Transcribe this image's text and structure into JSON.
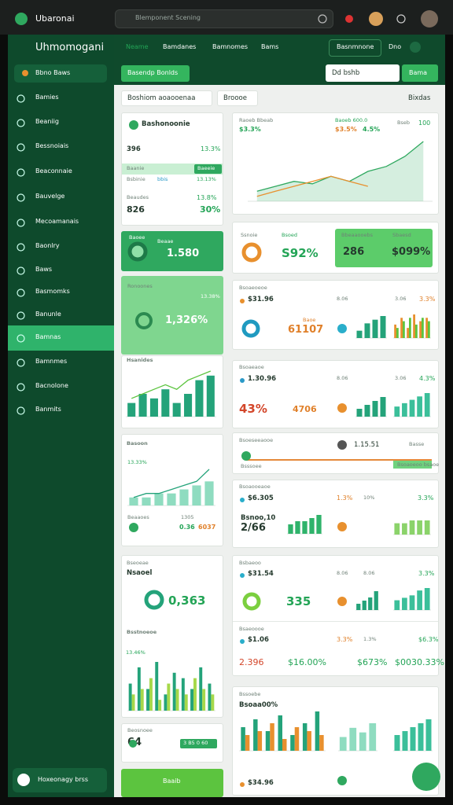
{
  "topbar": {
    "title": "Ubaronai",
    "search": "Blemponent Scening"
  },
  "sidebar": {
    "title": "Uhmomogani",
    "button": "Bbno Baws",
    "items": [
      "Bamies",
      "Beaniig",
      "Bessnoiais",
      "Beaconnaie",
      "Bauvelge",
      "Mecoamanais",
      "Baonlry",
      "Baws",
      "Basmomks",
      "Banunle",
      "Bamnas",
      "Bamnmes",
      "Bacnolone",
      "Banmits"
    ],
    "user": "Hoxeonagy brss"
  },
  "header": {
    "tabs": [
      "Neame",
      "Bamdanes",
      "Bamnomes",
      "Bams"
    ],
    "select": "Basnmnone",
    "user": "Dno",
    "primary": "Basendp Bonlds",
    "input": "Dd bshb",
    "action": "Bama"
  },
  "filters": {
    "select": "Boshiom aoaooenaa",
    "chip": "Broooe",
    "sort": "Bixdas"
  },
  "cards": {
    "l0": [
      "Bashonoonie",
      "396",
      "13.3%",
      "Baanie",
      "Baeeie",
      "Bsbinie",
      "bbis",
      "13.13%",
      "Beaudes",
      "13.8%",
      "826",
      "30%"
    ],
    "l1": [
      "Baoee",
      "Beaae",
      "1.580"
    ],
    "l2": [
      "Ronoones",
      "13.38%",
      "1,326%"
    ],
    "l3": [
      "Hsanides"
    ],
    "l4": [
      "Basoon",
      "13.33%",
      "Beaaoes",
      "1305",
      "0.36",
      "6037"
    ],
    "l5": [
      "Bseoeae",
      "Nsaoel",
      "0,363",
      "Bsstnoeoe",
      "13.46%"
    ],
    "l6": [
      "Beosnoee",
      "64",
      "3 B5 0 60"
    ],
    "l7": [
      "Baaib"
    ],
    "r0": [
      "Raoeb Bbeab",
      "$3.3%",
      "Baoeb 600.0",
      "$3.5%",
      "4.5%",
      "Bseb",
      "100"
    ],
    "r1": [
      "Ssnoie",
      "Bsoed",
      "S92%",
      "Bbeaaooebs",
      "Sbaesd",
      "286",
      "$099%"
    ],
    "r2": [
      "Bsoaeoeoe",
      "$31.96",
      "8.06",
      "3.06",
      "3.3%",
      "61107",
      "Baoe"
    ],
    "r3": [
      "Bsoaeaoe",
      "1.30.96",
      "8.06",
      "3.06",
      "4.3%",
      "43%",
      "4706"
    ],
    "r4": [
      "Bsoeseeaooe",
      "1.15.51",
      "Basse",
      "Bsssoee",
      "Bsoaoeoo bsaoe"
    ],
    "r5": [
      "Bsoaooeaoe",
      "$6.305",
      "1.3%",
      "10%",
      "3.3%",
      "Bsnoo,10",
      "2/66"
    ],
    "r6": [
      "Bsbaeoo",
      "$31.54",
      "8.06",
      "8.06",
      "3.3%",
      "335",
      "Bsaeoooe",
      "$1.06",
      "3.3%",
      "1.3%",
      "$6.3%",
      "2.396",
      "$16.00%",
      "$673%",
      "$0030.33%"
    ],
    "r7": [
      "Bssoebe",
      "Bsoaa00%",
      "$34.96"
    ]
  },
  "charts": {
    "r0": {
      "series": [
        {
          "kind": "area",
          "color": "#2fa85f",
          "values": [
            2,
            3,
            4,
            3.5,
            5,
            4,
            6,
            7,
            9,
            12
          ]
        },
        {
          "kind": "line",
          "color": "#e8902e",
          "values": [
            1,
            2,
            3,
            4,
            5,
            4,
            3
          ]
        }
      ]
    },
    "l3": {
      "series": [
        {
          "kind": "bar",
          "color": "#24a37a",
          "values": [
            3,
            5,
            4,
            6,
            3,
            5,
            8,
            9
          ]
        },
        {
          "kind": "line",
          "color": "#5cc43f",
          "values": [
            4,
            5,
            6,
            7,
            6,
            8,
            9,
            10
          ]
        }
      ]
    },
    "l4": {
      "series": [
        {
          "kind": "bar",
          "color": "#8fdcc0",
          "values": [
            2,
            2,
            3,
            3,
            4,
            5,
            6
          ]
        },
        {
          "kind": "line",
          "color": "#24a37a",
          "values": [
            2,
            3,
            3,
            4,
            5,
            6,
            9
          ]
        }
      ]
    },
    "l5": {
      "series": [
        {
          "kind": "bar",
          "color": "#24a37a",
          "values": [
            5,
            8,
            4,
            9,
            3,
            7,
            6,
            4,
            8,
            5
          ]
        },
        {
          "kind": "bar",
          "color": "#a6d84a",
          "values": [
            3,
            4,
            6,
            2,
            5,
            4,
            3,
            6,
            4,
            3
          ]
        }
      ]
    },
    "r2a": {
      "series": [
        {
          "kind": "bar",
          "color": "#24a37a",
          "values": [
            2,
            4,
            5,
            6
          ]
        }
      ]
    },
    "r2b": {
      "series": [
        {
          "kind": "bar",
          "color": "#e8902e",
          "values": [
            4,
            6,
            3,
            7,
            5,
            6
          ]
        },
        {
          "kind": "bar",
          "color": "#5cc43f",
          "values": [
            3,
            5,
            6,
            4,
            6,
            5
          ]
        }
      ]
    },
    "r3a": {
      "series": [
        {
          "kind": "bar",
          "color": "#24a37a",
          "values": [
            2,
            3,
            4,
            5
          ]
        }
      ]
    },
    "r3b": {
      "series": [
        {
          "kind": "bar",
          "color": "#3bbf9a",
          "values": [
            3,
            4,
            5,
            6,
            7
          ]
        }
      ]
    },
    "r5a": {
      "series": [
        {
          "kind": "bar",
          "color": "#2fb36b",
          "values": [
            3,
            4,
            4,
            5,
            6
          ]
        }
      ]
    },
    "r5b": {
      "series": [
        {
          "kind": "bar",
          "color": "#8bd36a",
          "values": [
            4,
            4,
            5,
            5,
            5
          ]
        }
      ]
    },
    "r6a": {
      "series": [
        {
          "kind": "bar",
          "color": "#24a37a",
          "values": [
            2,
            3,
            4,
            6
          ]
        }
      ]
    },
    "r6b": {
      "series": [
        {
          "kind": "bar",
          "color": "#3bbf9a",
          "values": [
            4,
            5,
            6,
            8,
            9
          ]
        }
      ]
    },
    "r7a": {
      "series": [
        {
          "kind": "bar",
          "color": "#24a37a",
          "values": [
            6,
            8,
            5,
            9,
            4,
            7,
            10
          ]
        },
        {
          "kind": "bar",
          "color": "#e8902e",
          "values": [
            4,
            5,
            7,
            3,
            6,
            5,
            4
          ]
        }
      ]
    },
    "r7b": {
      "series": [
        {
          "kind": "bar",
          "color": "#8fdcc0",
          "values": [
            3,
            5,
            4,
            6
          ]
        }
      ]
    },
    "r7c": {
      "series": [
        {
          "kind": "bar",
          "color": "#3bbf9a",
          "values": [
            4,
            5,
            6,
            7,
            8
          ]
        }
      ]
    }
  }
}
